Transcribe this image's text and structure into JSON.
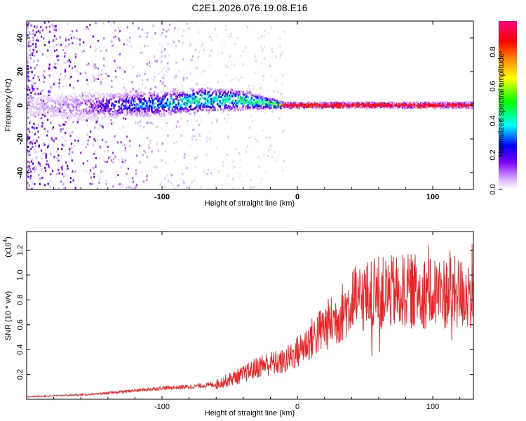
{
  "title": "C2E1.2026.076.19.08.E16",
  "chart_data": [
    {
      "type": "heatmap",
      "name": "spectrogram",
      "xlabel": "Height of straight line (km)",
      "ylabel": "Frequency (Hz)",
      "xlim": [
        -200,
        130
      ],
      "ylim": [
        -50,
        50
      ],
      "xticks": [
        -100,
        0,
        100
      ],
      "yticks": [
        -40,
        -20,
        0,
        20,
        40
      ],
      "colorbar": {
        "label": "Normalized spectral amplitude",
        "range": [
          0.0,
          0.98
        ],
        "ticks": [
          0.0,
          0.2,
          0.4,
          0.6,
          0.8
        ],
        "tick_labels": [
          "0.0",
          "0.2",
          "0.4",
          "0.6",
          "0.8"
        ],
        "colormap": [
          "#ffffff",
          "#d9b3ff",
          "#8000ff",
          "#0000ff",
          "#00ffff",
          "#00ff00",
          "#ffff00",
          "#ff8000",
          "#ff0000",
          "#ff0080"
        ]
      },
      "band_profile": [
        {
          "x": -200,
          "center": 0,
          "width": 6,
          "peak": 0.05
        },
        {
          "x": -160,
          "center": -1,
          "width": 6,
          "peak": 0.12
        },
        {
          "x": -130,
          "center": 0,
          "width": 5,
          "peak": 0.3
        },
        {
          "x": -100,
          "center": 1,
          "width": 5,
          "peak": 0.4
        },
        {
          "x": -70,
          "center": 3,
          "width": 5,
          "peak": 0.5
        },
        {
          "x": -40,
          "center": 3,
          "width": 4,
          "peak": 0.5
        },
        {
          "x": -20,
          "center": 1,
          "width": 2,
          "peak": 0.6
        },
        {
          "x": -10,
          "center": 0,
          "width": 1,
          "peak": 0.95
        },
        {
          "x": 130,
          "center": 0,
          "width": 1,
          "peak": 0.98
        }
      ]
    },
    {
      "type": "line",
      "name": "snr",
      "color": "#ee2222",
      "xlabel": "Height of straight line (km)",
      "ylabel": "SNR (10 * v/v)",
      "yscale_label": "(x10",
      "yscale_exponent": "4",
      "yscale_suffix": ")",
      "xlim": [
        -200,
        130
      ],
      "ylim": [
        0,
        1.35
      ],
      "xticks": [
        -100,
        0,
        100
      ],
      "yticks": [
        0.2,
        0.4,
        0.6,
        0.8,
        1.0,
        1.2
      ],
      "ytick_labels": [
        "0.2",
        "0.4",
        "0.6",
        "0.8",
        "1.0",
        "1.2"
      ],
      "trend": [
        {
          "x": -200,
          "y": 0.02
        },
        {
          "x": -150,
          "y": 0.04
        },
        {
          "x": -120,
          "y": 0.07
        },
        {
          "x": -100,
          "y": 0.09
        },
        {
          "x": -80,
          "y": 0.1
        },
        {
          "x": -60,
          "y": 0.12
        },
        {
          "x": -40,
          "y": 0.2
        },
        {
          "x": -25,
          "y": 0.28
        },
        {
          "x": -10,
          "y": 0.3
        },
        {
          "x": 0,
          "y": 0.38
        },
        {
          "x": 10,
          "y": 0.48
        },
        {
          "x": 20,
          "y": 0.58
        },
        {
          "x": 30,
          "y": 0.66
        },
        {
          "x": 40,
          "y": 0.78
        },
        {
          "x": 50,
          "y": 0.83
        },
        {
          "x": 60,
          "y": 0.85
        },
        {
          "x": 70,
          "y": 0.86
        },
        {
          "x": 80,
          "y": 0.87
        },
        {
          "x": 90,
          "y": 0.87
        },
        {
          "x": 100,
          "y": 0.86
        },
        {
          "x": 110,
          "y": 0.86
        },
        {
          "x": 120,
          "y": 0.85
        },
        {
          "x": 130,
          "y": 0.85
        }
      ],
      "noise_fraction": 0.35,
      "peak_max": 1.35
    }
  ]
}
